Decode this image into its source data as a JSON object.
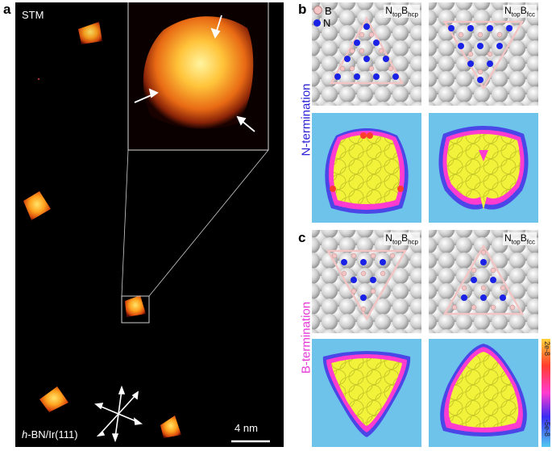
{
  "panels": {
    "a": {
      "letter": "a",
      "title": "STM",
      "substrate_prefix": "h",
      "substrate_rest": "-BN/Ir(111)",
      "scale_bar": "4 nm"
    },
    "b": {
      "letter": "b",
      "legend_b": "B",
      "legend_n": "N",
      "row_label": "N-termination",
      "left_structure": {
        "main": "N",
        "sub1": "top",
        "main2": "B",
        "sub2": "hcp"
      },
      "right_structure": {
        "main": "N",
        "sub1": "top",
        "main2": "B",
        "sub2": "fcc"
      }
    },
    "c": {
      "letter": "c",
      "row_label": "B-termination",
      "left_structure": {
        "main": "N",
        "sub1": "top",
        "main2": "B",
        "sub2": "hcp"
      },
      "right_structure": {
        "main": "N",
        "sub1": "top",
        "main2": "B",
        "sub2": "fcc"
      }
    }
  },
  "colorbar": {
    "max_label": "2e-8",
    "min_label": "-5e-8",
    "colors": [
      "#ffd23a",
      "#ff3d2e",
      "#ff3bd0",
      "#3a2cf2",
      "#52c8ef"
    ]
  },
  "colors": {
    "boron": "#f2c4c4",
    "nitrogen": "#1a22e6",
    "n_termination": "#2a1fd6",
    "b_termination": "#e636d8",
    "stm_hot": "#ffb12a"
  }
}
